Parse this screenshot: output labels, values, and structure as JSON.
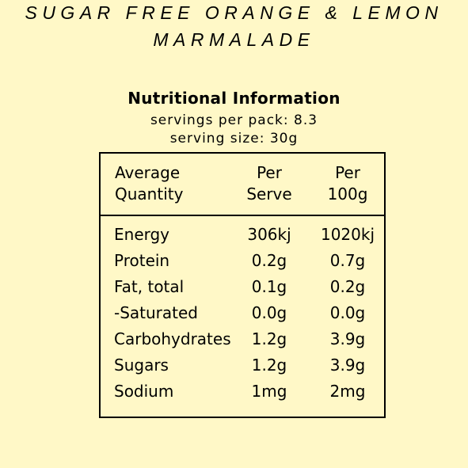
{
  "product": {
    "title_line1": "SUGAR FREE ORANGE & LEMON",
    "title_line2": "MARMALADE"
  },
  "nutrition": {
    "heading": "Nutritional Information",
    "servings_per_pack": "servings per pack: 8.3",
    "serving_size": "serving size: 30g",
    "header": {
      "col1_line1": "Average",
      "col1_line2": "Quantity",
      "col2_line1": "Per",
      "col2_line2": "Serve",
      "col3_line1": "Per",
      "col3_line2": "100g"
    },
    "rows": [
      {
        "name": "Energy",
        "per_serve": "306kj",
        "per_100g": "1020kj"
      },
      {
        "name": "Protein",
        "per_serve": "0.2g",
        "per_100g": "0.7g"
      },
      {
        "name": "Fat, total",
        "per_serve": "0.1g",
        "per_100g": "0.2g"
      },
      {
        "name": "-Saturated",
        "per_serve": "0.0g",
        "per_100g": "0.0g"
      },
      {
        "name": "Carbohydrates",
        "per_serve": "1.2g",
        "per_100g": "3.9g"
      },
      {
        "name": "Sugars",
        "per_serve": "1.2g",
        "per_100g": "3.9g"
      },
      {
        "name": "Sodium",
        "per_serve": "1mg",
        "per_100g": "2mg"
      }
    ]
  },
  "colors": {
    "background": "#fff8c7",
    "text": "#000000"
  }
}
